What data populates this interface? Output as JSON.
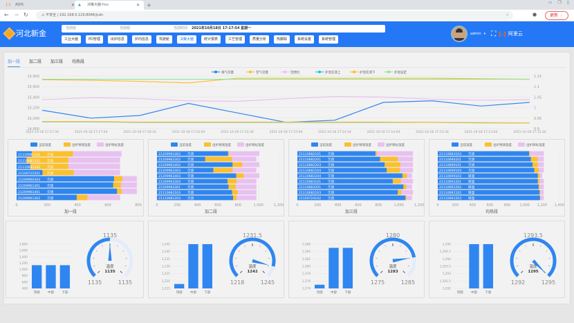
{
  "browser": {
    "tabs": [
      {
        "label": "ADIS"
      },
      {
        "label": "决策大脑-hsu"
      }
    ],
    "url": "192.168.0.129:8084/jcdn",
    "insecure": "不安全",
    "update": "更新"
  },
  "header": {
    "logo": "河北新金",
    "team_label": "当前班",
    "group_label": "当前组",
    "time_label": "当前时间",
    "time_value": "2021年10月18日 17:17:54 星期一",
    "user": "admin",
    "cloud": "阿里云",
    "menu": [
      "工业大脑",
      "PD管理",
      "出炉信息",
      "炉内信息",
      "驾驶舱",
      "决策大脑",
      "统计报表",
      "工艺管理",
      "质量分析",
      "热脚踪",
      "系统设置",
      "系统管理"
    ],
    "active_menu": 5
  },
  "tabs": [
    "加一段",
    "加二段",
    "加三段",
    "均热段"
  ],
  "active_tab": 0,
  "colors": {
    "blue": "#2f86f0",
    "yellow": "#fbc02d",
    "pink": "#e8c1f0",
    "cyan": "#26c6da",
    "green": "#8fe3a3"
  },
  "chart_data": [
    {
      "type": "line",
      "title": "",
      "xlabel": "",
      "ylabel": "",
      "x": [
        "2021-10-18 17:17:34",
        "2021-10-18 17:17:04",
        "2021-10-18 17:16:34",
        "2021-10-18 17:16:04",
        "2021-10-18 17:15:34",
        "2021-10-18 17:15:04",
        "2021-10-18 17:14:34",
        "2021-10-18 17:14:04",
        "2021-10-18 17:13:34",
        "2021-10-18 17:13:04",
        "2021-10-18 17:12:34"
      ],
      "ylim": [
        14800,
        15800
      ],
      "yticks": [
        "14,800",
        "15,000",
        "15,200",
        "15,400",
        "15,600",
        "15,800"
      ],
      "y2lim": [
        0.9,
        1.15
      ],
      "y2ticks": [
        "0.9",
        "0.95",
        "1",
        "1.05",
        "1.1",
        "1.15"
      ],
      "legend": "top-right",
      "series": [
        {
          "name": "煤气流量",
          "color": "#2f86f0",
          "values": [
            15150,
            15000,
            15050,
            15280,
            15100,
            14920,
            14960,
            15300,
            15330,
            15230,
            15300
          ]
        },
        {
          "name": "空气流量",
          "color": "#fbc02d",
          "values": [
            15730,
            15720,
            15700,
            15670,
            15760,
            15760,
            15760,
            15760,
            15760,
            15750,
            15740
          ]
        },
        {
          "name": "空燃比",
          "color": "#e8c1f0",
          "values": [
            15350,
            15390,
            15370,
            15330,
            15320,
            15370,
            15410,
            15400,
            15360,
            15340,
            15350
          ]
        },
        {
          "name": "炉温实测上",
          "color": "#26c6da",
          "values": [
            14930,
            14930,
            14920,
            14920,
            14920,
            14920,
            14920,
            14920,
            14920,
            14910,
            14910
          ]
        },
        {
          "name": "炉温实测下",
          "color": "#fbc02d",
          "values": [
            14935,
            14935,
            14925,
            14925,
            14925,
            14925,
            14925,
            14925,
            14920,
            14915,
            14910
          ]
        },
        {
          "name": "炉温设定",
          "color": "#8fe3a3",
          "values": [
            15740,
            15740,
            15740,
            15740,
            15740,
            15740,
            15740,
            15740,
            15740,
            15740,
            15740
          ]
        }
      ]
    },
    {
      "type": "bar",
      "title": "加一段",
      "legend": [
        "当前温度",
        "出炉预测温度",
        "出炉目标温度"
      ],
      "xlim": [
        0,
        800
      ],
      "xticks": [
        "0",
        "200",
        "400",
        "600",
        "800"
      ],
      "rows": [
        [
          "21110681101",
          "欠烧",
          100,
          370,
          690
        ],
        [
          "21110681102",
          "欠烧",
          65,
          340,
          680
        ],
        [
          "21110681202",
          "欠烧",
          90,
          340,
          680
        ],
        [
          "21109725201",
          "欠烧",
          170,
          375,
          680
        ],
        [
          "21209960304",
          "欠烧",
          640,
          695,
          790
        ],
        [
          "21209961301",
          "欠烧",
          635,
          685,
          790
        ],
        [
          "21209961401",
          "欠烧",
          660,
          690,
          790
        ],
        [
          "21209961302",
          "欠烧",
          395,
          465,
          680
        ]
      ]
    },
    {
      "type": "bar",
      "title": "加二段",
      "legend": [
        "当前温度",
        "出炉预测温度",
        "出炉目标温度"
      ],
      "xlim": [
        0,
        1200
      ],
      "xticks": [
        "0",
        "200",
        "400",
        "600",
        "800",
        "1,000",
        "1,200"
      ],
      "rows": [
        [
          "21209961402",
          "欠烧",
          700,
          710,
          1010
        ],
        [
          "21209963302",
          "欠烧",
          475,
          740,
          980
        ],
        [
          "21209963402",
          "欠烧",
          745,
          840,
          1010
        ],
        [
          "21209963303",
          "欠烧",
          555,
          745,
          980
        ],
        [
          "21209963403",
          "欠烧",
          780,
          855,
          1010
        ],
        [
          "21209963304",
          "欠烧",
          695,
          785,
          980
        ],
        [
          "21209964301",
          "欠烧",
          705,
          775,
          980
        ],
        [
          "21110681103",
          "欠烧",
          740,
          795,
          980
        ],
        [
          "21110681203",
          "欠烧",
          750,
          785,
          980
        ]
      ]
    },
    {
      "type": "bar",
      "title": "加三段",
      "legend": [
        "当前温度",
        "出炉预测温度",
        "出炉目标温度"
      ],
      "xlim": [
        0,
        1200
      ],
      "xticks": [
        "0",
        "200",
        "400",
        "600",
        "800",
        "1,000",
        "1,200"
      ],
      "rows": [
        [
          "21110682101",
          "欠烧",
          770,
          785,
          1140
        ],
        [
          "21110682201",
          "欠烧",
          815,
          990,
          1140
        ],
        [
          "21110682203",
          "欠烧",
          860,
          1015,
          1140
        ],
        [
          "21110682104",
          "欠烧",
          880,
          1010,
          1140
        ],
        [
          "21110682204",
          "欠烧",
          1035,
          1080,
          1130
        ],
        [
          "21110683101",
          "欠烧",
          940,
          1020,
          1140
        ],
        [
          "21110683201",
          "欠烧",
          1045,
          1075,
          1130
        ],
        [
          "21110682103",
          "欠烧",
          990,
          1025,
          1140
        ],
        [
          "21109724102",
          "欠烧",
          1065,
          1075,
          1130
        ]
      ]
    },
    {
      "type": "bar",
      "title": "均热段",
      "legend": [
        "当前温度",
        "出炉预测温度",
        "出炉目标温度"
      ],
      "xlim": [
        0,
        1400
      ],
      "xticks": [
        "0",
        "200",
        "400",
        "600",
        "800",
        "1,000",
        "1,200",
        "1,400"
      ],
      "rows": [
        [
          "21110683103",
          "欠烧",
          1050,
          1060,
          1220
        ],
        [
          "21110690201",
          "欠烧",
          1070,
          1150,
          1220
        ],
        [
          "21110690101",
          "欠烧",
          1090,
          1150,
          1220
        ],
        [
          "21110690104",
          "欠烧",
          1110,
          1160,
          1220
        ],
        [
          "21110690103",
          "缺温",
          1150,
          1170,
          1200
        ],
        [
          "21110691201",
          "缺温",
          1150,
          1170,
          1220
        ],
        [
          "21110691202",
          "缺温",
          1160,
          1170,
          1220
        ],
        [
          "21110691102",
          "缺温",
          1170,
          1180,
          1220
        ],
        [
          "21110691203",
          "缺温",
          1175,
          1180,
          1220
        ]
      ]
    },
    {
      "type": "bar",
      "categories": [
        "顶部",
        "中部",
        "下部"
      ],
      "values": [
        1135,
        1135,
        1135
      ],
      "ylim": [
        400,
        1800
      ],
      "yticks": [
        "400",
        "600",
        "800",
        "1,000",
        "1,200",
        "1,400",
        "1,600",
        "1,800"
      ],
      "gauge": {
        "label": "温度",
        "value": 1135,
        "min": 1135,
        "max": 1135,
        "mid": "1135",
        "min_label": "1135",
        "max_label": "1135",
        "value_label": "1135"
      }
    },
    {
      "type": "bar",
      "categories": [
        "顶部",
        "中部",
        "下部"
      ],
      "values": [
        1218,
        1245,
        1245
      ],
      "ylim": [
        1215,
        1245
      ],
      "yticks": [
        "1,215",
        "1,220",
        "1,225",
        "1,230",
        "1,235",
        "1,240",
        "1,245"
      ],
      "gauge": {
        "label": "温度",
        "value": 1242,
        "min": 1218,
        "max": 1245,
        "mid": "1231.5",
        "min_label": "1218",
        "max_label": "1245",
        "value_label": "1242"
      }
    },
    {
      "type": "bar",
      "categories": [
        "顶部",
        "中部",
        "下部"
      ],
      "values": [
        1275,
        1285,
        1285
      ],
      "ylim": [
        1274,
        1286
      ],
      "yticks": [
        "1,274",
        "1,276",
        "1,278",
        "1,280",
        "1,282",
        "1,284",
        "1,286"
      ],
      "gauge": {
        "label": "温度",
        "value": 1283,
        "min": 1275,
        "max": 1285,
        "mid": "1280",
        "min_label": "1275",
        "max_label": "1285",
        "value_label": "1283"
      }
    },
    {
      "type": "bar",
      "categories": [
        "顶部",
        "中部",
        "下部"
      ],
      "values": [
        1292,
        1295,
        1295
      ],
      "ylim": [
        1292,
        1295
      ],
      "yticks": [
        "1,292",
        "1,292.5",
        "1,293",
        "1,293.5",
        "1,294",
        "1,294.5",
        "1,295"
      ],
      "gauge": {
        "label": "温度",
        "value": 1295,
        "min": 1292,
        "max": 1295,
        "mid": "1293.5",
        "min_label": "1292",
        "max_label": "1295",
        "value_label": "1295"
      }
    }
  ]
}
